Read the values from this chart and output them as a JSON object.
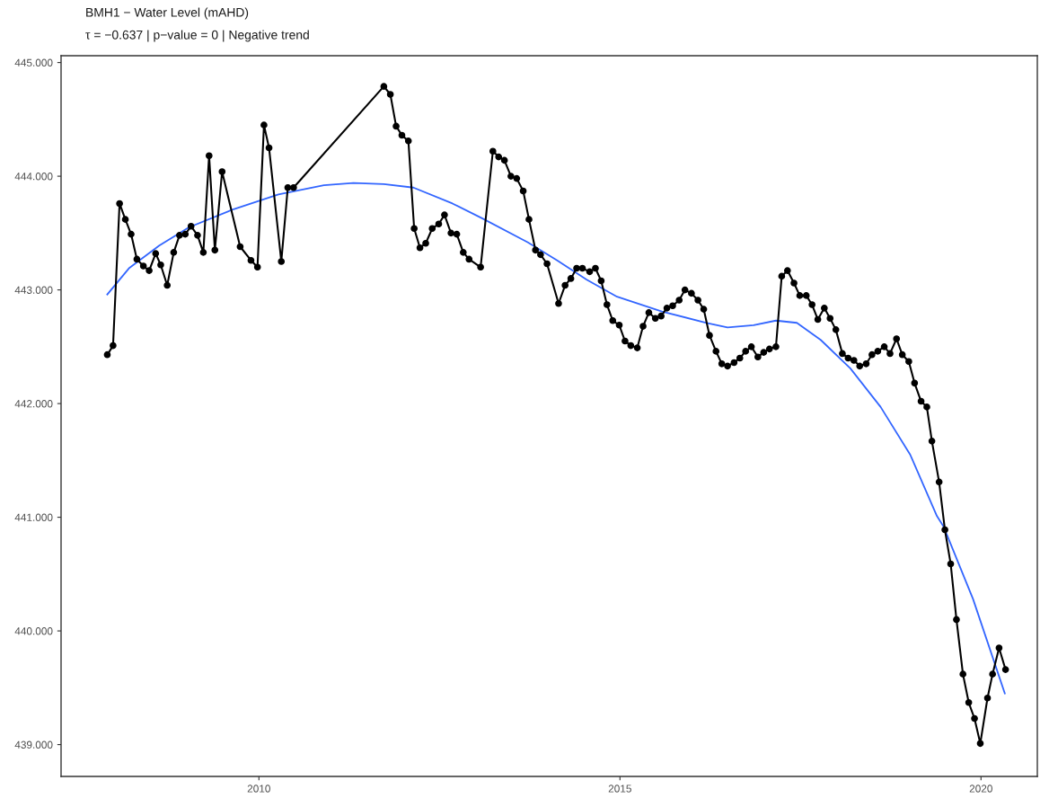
{
  "chart_data": {
    "type": "line",
    "title": "BMH1 − Water Level (mAHD)",
    "subtitle": "τ = −0.637 | p−value = 0 | Negative trend",
    "xlim": [
      2007.26,
      2020.78
    ],
    "xticks": [
      2010,
      2015,
      2020
    ],
    "ylim": [
      438.72,
      445.06
    ],
    "yticks": [
      {
        "value": 439,
        "label": "439.000"
      },
      {
        "value": 440,
        "label": "440.000"
      },
      {
        "value": 441,
        "label": "441.000"
      },
      {
        "value": 442,
        "label": "442.000"
      },
      {
        "value": 443,
        "label": "443.000"
      },
      {
        "value": 444,
        "label": "444.000"
      },
      {
        "value": 445,
        "label": "445.000"
      }
    ],
    "grid": false,
    "series": [
      {
        "color": "#000000",
        "marker": "circle",
        "line_style": "solid",
        "x": [
          2007.9,
          2007.98,
          2008.07,
          2008.15,
          2008.23,
          2008.31,
          2008.4,
          2008.48,
          2008.57,
          2008.64,
          2008.73,
          2008.82,
          2008.9,
          2008.98,
          2009.06,
          2009.15,
          2009.23,
          2009.31,
          2009.39,
          2009.49,
          2009.74,
          2009.89,
          2009.98,
          2010.07,
          2010.14,
          2010.31,
          2010.4,
          2010.48,
          2011.73,
          2011.82,
          2011.9,
          2011.98,
          2012.07,
          2012.15,
          2012.23,
          2012.31,
          2012.4,
          2012.49,
          2012.57,
          2012.66,
          2012.74,
          2012.83,
          2012.91,
          2013.07,
          2013.24,
          2013.32,
          2013.4,
          2013.49,
          2013.57,
          2013.66,
          2013.74,
          2013.83,
          2013.9,
          2013.99,
          2014.15,
          2014.24,
          2014.32,
          2014.4,
          2014.48,
          2014.58,
          2014.66,
          2014.74,
          2014.82,
          2014.9,
          2014.99,
          2015.07,
          2015.15,
          2015.24,
          2015.32,
          2015.4,
          2015.49,
          2015.57,
          2015.65,
          2015.73,
          2015.82,
          2015.9,
          2015.99,
          2016.08,
          2016.16,
          2016.24,
          2016.33,
          2016.41,
          2016.49,
          2016.58,
          2016.66,
          2016.74,
          2016.82,
          2016.91,
          2016.99,
          2017.07,
          2017.16,
          2017.24,
          2017.32,
          2017.41,
          2017.49,
          2017.58,
          2017.66,
          2017.74,
          2017.83,
          2017.91,
          2017.99,
          2018.08,
          2018.16,
          2018.24,
          2018.32,
          2018.41,
          2018.49,
          2018.57,
          2018.66,
          2018.74,
          2018.83,
          2018.91,
          2019.0,
          2019.08,
          2019.17,
          2019.25,
          2019.32,
          2019.42,
          2019.5,
          2019.58,
          2019.66,
          2019.75,
          2019.83,
          2019.91,
          2019.99,
          2020.09,
          2020.16,
          2020.25,
          2020.34
        ],
        "values": [
          442.43,
          442.51,
          443.76,
          443.62,
          443.49,
          443.27,
          443.21,
          443.17,
          443.32,
          443.22,
          443.04,
          443.33,
          443.48,
          443.49,
          443.56,
          443.48,
          443.33,
          444.18,
          443.35,
          444.04,
          443.38,
          443.26,
          443.2,
          444.45,
          444.25,
          443.25,
          443.9,
          443.9,
          444.79,
          444.72,
          444.44,
          444.36,
          444.31,
          443.54,
          443.37,
          443.41,
          443.54,
          443.58,
          443.66,
          443.5,
          443.49,
          443.33,
          443.27,
          443.2,
          444.22,
          444.17,
          444.14,
          444.0,
          443.98,
          443.87,
          443.62,
          443.35,
          443.31,
          443.23,
          442.88,
          443.04,
          443.1,
          443.19,
          443.19,
          443.16,
          443.19,
          443.08,
          442.87,
          442.73,
          442.69,
          442.55,
          442.51,
          442.49,
          442.68,
          442.8,
          442.75,
          442.77,
          442.84,
          442.86,
          442.91,
          443.0,
          442.97,
          442.91,
          442.83,
          442.6,
          442.46,
          442.35,
          442.33,
          442.36,
          442.4,
          442.46,
          442.5,
          442.41,
          442.45,
          442.48,
          442.5,
          443.12,
          443.17,
          443.06,
          442.95,
          442.95,
          442.87,
          442.74,
          442.84,
          442.75,
          442.65,
          442.44,
          442.4,
          442.38,
          442.33,
          442.35,
          442.43,
          442.46,
          442.5,
          442.44,
          442.57,
          442.43,
          442.37,
          442.18,
          442.02,
          441.97,
          441.67,
          441.31,
          440.89,
          440.59,
          440.1,
          439.62,
          439.37,
          439.23,
          439.01,
          439.41,
          439.62,
          439.85,
          439.66
        ]
      },
      {
        "color": "#3366ff",
        "marker": "none",
        "line_style": "solid",
        "x": [
          2007.9,
          2008.2,
          2008.62,
          2009.03,
          2009.65,
          2010.27,
          2010.9,
          2011.31,
          2011.73,
          2012.14,
          2012.68,
          2013.09,
          2013.72,
          2014.13,
          2014.54,
          2014.96,
          2015.58,
          2016.2,
          2016.49,
          2016.85,
          2017.16,
          2017.45,
          2017.78,
          2018.19,
          2018.61,
          2019.02,
          2019.39,
          2019.48,
          2019.89,
          2020.33
        ],
        "values": [
          442.96,
          443.19,
          443.39,
          443.55,
          443.71,
          443.84,
          443.92,
          443.94,
          443.93,
          443.9,
          443.76,
          443.63,
          443.42,
          443.26,
          443.09,
          442.94,
          442.81,
          442.71,
          442.67,
          442.69,
          442.73,
          442.71,
          442.56,
          442.31,
          441.97,
          441.55,
          441.01,
          440.92,
          440.28,
          439.45
        ]
      }
    ]
  }
}
